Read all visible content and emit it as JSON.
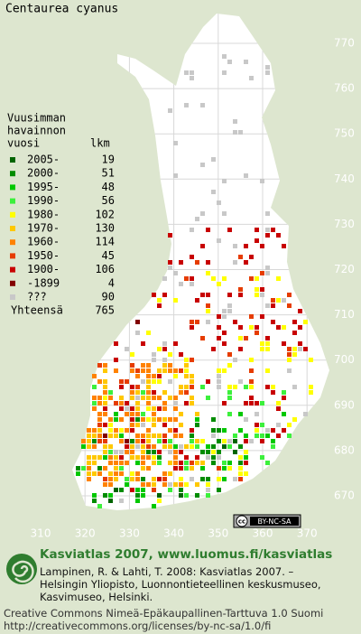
{
  "title": "Centaurea cyanus",
  "legend": {
    "heading": [
      "Vuusimman",
      "havainnon",
      "vuosi"
    ],
    "count_heading": "lkm",
    "entries": [
      {
        "label": "2005-",
        "count": 19,
        "color": "#006400"
      },
      {
        "label": "2000-",
        "count": 51,
        "color": "#008c00"
      },
      {
        "label": "1995-",
        "count": 48,
        "color": "#00c800"
      },
      {
        "label": "1990-",
        "count": 56,
        "color": "#3cf03c"
      },
      {
        "label": "1980-",
        "count": 102,
        "color": "#ffff00"
      },
      {
        "label": "1970-",
        "count": 130,
        "color": "#ffc800"
      },
      {
        "label": "1960-",
        "count": 114,
        "color": "#ff8200"
      },
      {
        "label": "1950-",
        "count": 45,
        "color": "#e63c00"
      },
      {
        "label": "1900-",
        "count": 106,
        "color": "#c80000"
      },
      {
        "label": "-1899",
        "count": 4,
        "color": "#820000"
      },
      {
        "label": "???",
        "count": 90,
        "color": "#c8c8c8"
      }
    ],
    "total_label": "Yhteensä",
    "total": 765
  },
  "grid": {
    "y_labels": [
      770,
      760,
      750,
      740,
      730,
      720,
      710,
      700,
      690,
      680,
      670
    ],
    "x_labels": [
      310,
      320,
      330,
      340,
      350,
      360,
      370
    ]
  },
  "badge": {
    "cc": "cc",
    "text": "BY-NC-SA"
  },
  "footer": {
    "headline": "Kasviatlas 2007, www.luomus.fi/kasviatlas",
    "citation": [
      "Lampinen, R. & Lahti, T. 2008: Kasviatlas 2007. –",
      "Helsingin Yliopisto, Luonnontieteellinen keskusmuseo,",
      "Kasvimuseo, Helsinki."
    ],
    "license": [
      "Creative Commons Nimeä-Epäkaupallinen-Tarttuva 1.0 Suomi",
      "http://creativecommons.org/licenses/by-nc-sa/1.0/fi"
    ]
  }
}
